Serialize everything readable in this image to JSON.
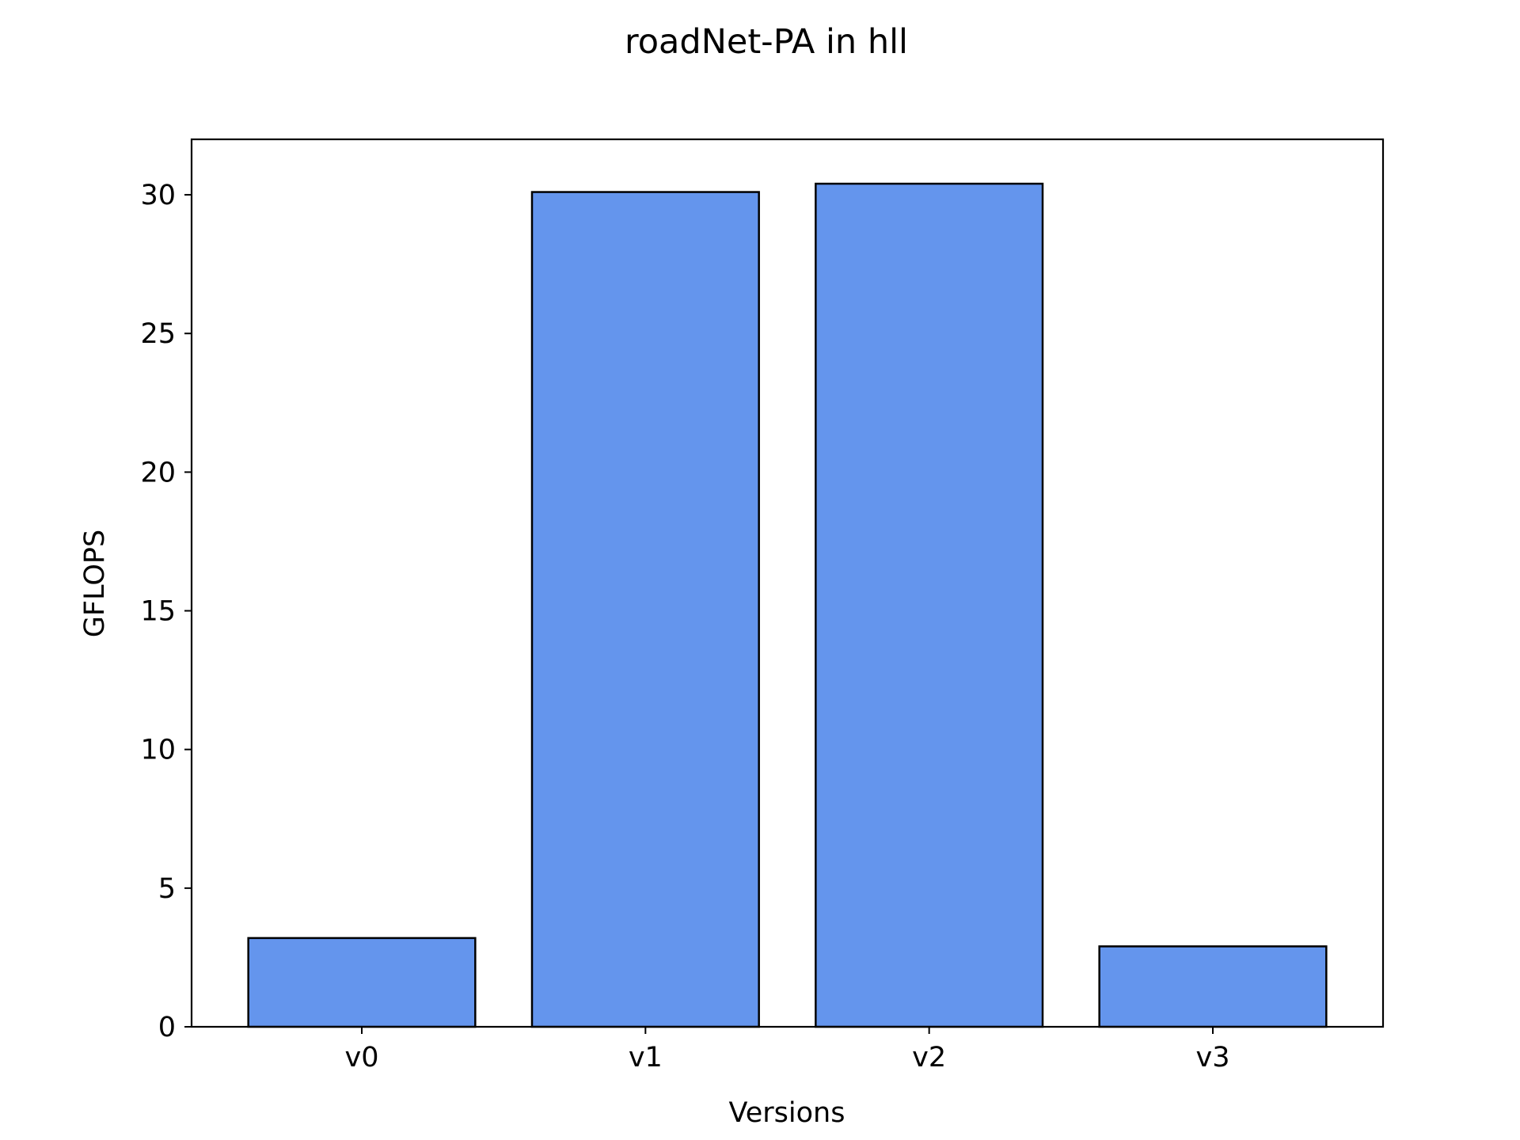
{
  "chart_data": {
    "type": "bar",
    "title": "roadNet-PA in hll",
    "xlabel": "Versions",
    "ylabel": "GFLOPS",
    "categories": [
      "v0",
      "v1",
      "v2",
      "v3"
    ],
    "values": [
      3.2,
      30.1,
      30.4,
      2.9
    ],
    "ylim": [
      0,
      32
    ],
    "yticks": [
      0,
      5,
      10,
      15,
      20,
      25,
      30
    ],
    "grid": false,
    "legend": "none",
    "bar_color": "#6495ED",
    "edge_color": "#000000"
  }
}
